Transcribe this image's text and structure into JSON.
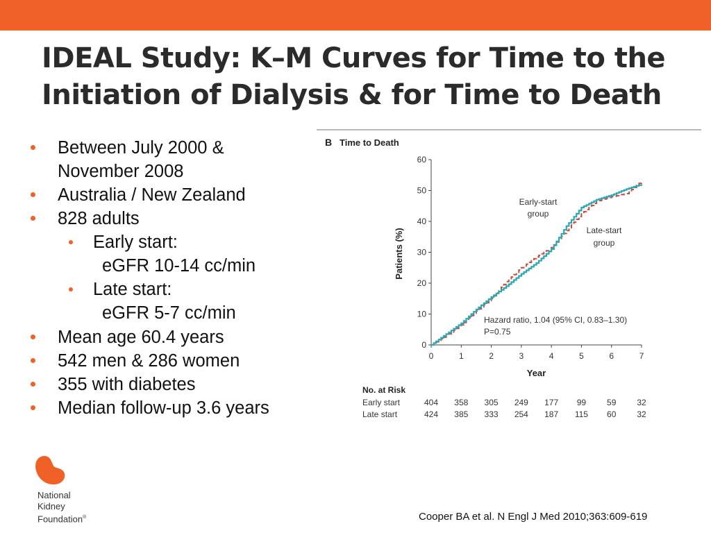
{
  "colors": {
    "accent": "#ef6127",
    "early": "#2aa7b2",
    "late": "#cc4a3d"
  },
  "slide": {
    "title_line1": "IDEAL Study: K–M Curves for Time to the",
    "title_line2": "Initiation of Dialysis & for Time to Death"
  },
  "bullets": {
    "b1_line1": "Between July 2000 &",
    "b1_line2": "November 2008",
    "b2": "Australia / New Zealand",
    "b3": "828 adults",
    "b3_sub1_label": "Early start:",
    "b3_sub1_value": "eGFR 10-14 cc/min",
    "b3_sub2_label": "Late start:",
    "b3_sub2_value": "eGFR 5-7 cc/min",
    "b4": "Mean age 60.4 years",
    "b5": "542 men & 286 women",
    "b6": "355 with diabetes",
    "b7": "Median follow-up 3.6 years"
  },
  "chart_data": {
    "type": "line",
    "panel_letter": "B",
    "title": "Time to Death",
    "xlabel": "Year",
    "ylabel": "Patients (%)",
    "xlim": [
      0,
      7
    ],
    "ylim": [
      0,
      60
    ],
    "xticks": [
      "0",
      "1",
      "2",
      "3",
      "4",
      "5",
      "6",
      "7"
    ],
    "yticks": [
      "0",
      "10",
      "20",
      "30",
      "40",
      "50",
      "60"
    ],
    "series": [
      {
        "name": "Early-start group",
        "label_line1": "Early-start",
        "label_line2": "group",
        "style": "solid",
        "color": "#2aa7b2",
        "x": [
          0,
          0.5,
          1,
          1.5,
          2,
          2.5,
          3,
          3.5,
          4,
          4.5,
          5,
          5.5,
          6,
          6.5,
          7
        ],
        "y": [
          0,
          3.5,
          7,
          11.5,
          15.5,
          19,
          23,
          26.5,
          31,
          38.5,
          44.5,
          47,
          48.5,
          50.5,
          52
        ]
      },
      {
        "name": "Late-start group",
        "label_line1": "Late-start",
        "label_line2": "group",
        "style": "dashed",
        "color": "#cc4a3d",
        "x": [
          0,
          0.5,
          1,
          1.5,
          2,
          2.5,
          3,
          3.5,
          4,
          4.5,
          5,
          5.5,
          6,
          6.5,
          7
        ],
        "y": [
          0,
          3,
          6.5,
          11,
          15,
          20.5,
          25,
          28.5,
          31.5,
          37,
          42.5,
          46.5,
          48,
          49,
          53
        ]
      }
    ],
    "annotation_line1": "Hazard ratio, 1.04 (95% CI, 0.83–1.30)",
    "annotation_line2": "P=0.75",
    "risk_table": {
      "header": "No. at Risk",
      "rows": [
        {
          "label": "Early start",
          "values": [
            "404",
            "358",
            "305",
            "249",
            "177",
            "99",
            "59",
            "32"
          ]
        },
        {
          "label": "Late start",
          "values": [
            "424",
            "385",
            "333",
            "254",
            "187",
            "115",
            "60",
            "32"
          ]
        }
      ]
    }
  },
  "logo": {
    "line1": "National",
    "line2": "Kidney",
    "line3": "Foundation",
    "mark": "®"
  },
  "citation": "Cooper BA et al. N Engl J Med 2010;363:609-619"
}
